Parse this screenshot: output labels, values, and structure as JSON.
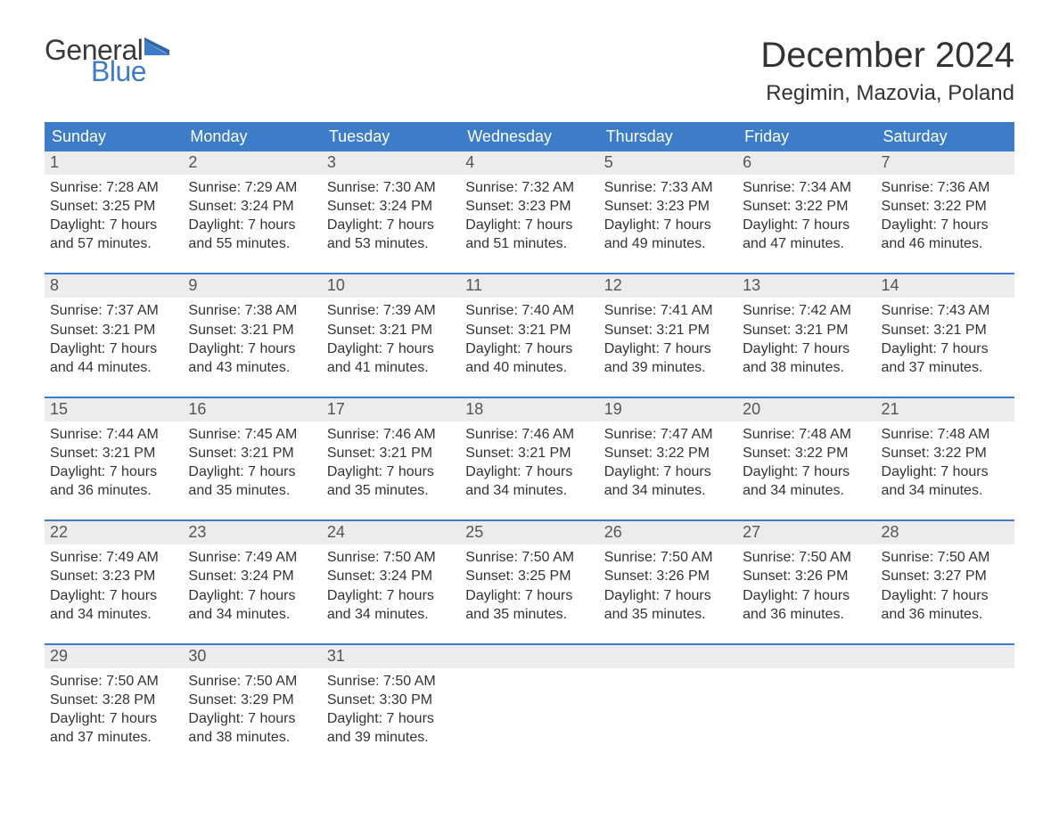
{
  "brand": {
    "word1": "General",
    "word2": "Blue"
  },
  "title": "December 2024",
  "subtitle": "Regimin, Mazovia, Poland",
  "colors": {
    "header_bg": "#3d7cc9",
    "header_text": "#ffffff",
    "daynum_bg": "#ececec",
    "text": "#333333",
    "rule": "#3d7cc9",
    "logo_blue": "#3d7cc9"
  },
  "dow": [
    "Sunday",
    "Monday",
    "Tuesday",
    "Wednesday",
    "Thursday",
    "Friday",
    "Saturday"
  ],
  "weeks": [
    [
      {
        "n": "1",
        "sunrise": "Sunrise: 7:28 AM",
        "sunset": "Sunset: 3:25 PM",
        "d1": "Daylight: 7 hours",
        "d2": "and 57 minutes."
      },
      {
        "n": "2",
        "sunrise": "Sunrise: 7:29 AM",
        "sunset": "Sunset: 3:24 PM",
        "d1": "Daylight: 7 hours",
        "d2": "and 55 minutes."
      },
      {
        "n": "3",
        "sunrise": "Sunrise: 7:30 AM",
        "sunset": "Sunset: 3:24 PM",
        "d1": "Daylight: 7 hours",
        "d2": "and 53 minutes."
      },
      {
        "n": "4",
        "sunrise": "Sunrise: 7:32 AM",
        "sunset": "Sunset: 3:23 PM",
        "d1": "Daylight: 7 hours",
        "d2": "and 51 minutes."
      },
      {
        "n": "5",
        "sunrise": "Sunrise: 7:33 AM",
        "sunset": "Sunset: 3:23 PM",
        "d1": "Daylight: 7 hours",
        "d2": "and 49 minutes."
      },
      {
        "n": "6",
        "sunrise": "Sunrise: 7:34 AM",
        "sunset": "Sunset: 3:22 PM",
        "d1": "Daylight: 7 hours",
        "d2": "and 47 minutes."
      },
      {
        "n": "7",
        "sunrise": "Sunrise: 7:36 AM",
        "sunset": "Sunset: 3:22 PM",
        "d1": "Daylight: 7 hours",
        "d2": "and 46 minutes."
      }
    ],
    [
      {
        "n": "8",
        "sunrise": "Sunrise: 7:37 AM",
        "sunset": "Sunset: 3:21 PM",
        "d1": "Daylight: 7 hours",
        "d2": "and 44 minutes."
      },
      {
        "n": "9",
        "sunrise": "Sunrise: 7:38 AM",
        "sunset": "Sunset: 3:21 PM",
        "d1": "Daylight: 7 hours",
        "d2": "and 43 minutes."
      },
      {
        "n": "10",
        "sunrise": "Sunrise: 7:39 AM",
        "sunset": "Sunset: 3:21 PM",
        "d1": "Daylight: 7 hours",
        "d2": "and 41 minutes."
      },
      {
        "n": "11",
        "sunrise": "Sunrise: 7:40 AM",
        "sunset": "Sunset: 3:21 PM",
        "d1": "Daylight: 7 hours",
        "d2": "and 40 minutes."
      },
      {
        "n": "12",
        "sunrise": "Sunrise: 7:41 AM",
        "sunset": "Sunset: 3:21 PM",
        "d1": "Daylight: 7 hours",
        "d2": "and 39 minutes."
      },
      {
        "n": "13",
        "sunrise": "Sunrise: 7:42 AM",
        "sunset": "Sunset: 3:21 PM",
        "d1": "Daylight: 7 hours",
        "d2": "and 38 minutes."
      },
      {
        "n": "14",
        "sunrise": "Sunrise: 7:43 AM",
        "sunset": "Sunset: 3:21 PM",
        "d1": "Daylight: 7 hours",
        "d2": "and 37 minutes."
      }
    ],
    [
      {
        "n": "15",
        "sunrise": "Sunrise: 7:44 AM",
        "sunset": "Sunset: 3:21 PM",
        "d1": "Daylight: 7 hours",
        "d2": "and 36 minutes."
      },
      {
        "n": "16",
        "sunrise": "Sunrise: 7:45 AM",
        "sunset": "Sunset: 3:21 PM",
        "d1": "Daylight: 7 hours",
        "d2": "and 35 minutes."
      },
      {
        "n": "17",
        "sunrise": "Sunrise: 7:46 AM",
        "sunset": "Sunset: 3:21 PM",
        "d1": "Daylight: 7 hours",
        "d2": "and 35 minutes."
      },
      {
        "n": "18",
        "sunrise": "Sunrise: 7:46 AM",
        "sunset": "Sunset: 3:21 PM",
        "d1": "Daylight: 7 hours",
        "d2": "and 34 minutes."
      },
      {
        "n": "19",
        "sunrise": "Sunrise: 7:47 AM",
        "sunset": "Sunset: 3:22 PM",
        "d1": "Daylight: 7 hours",
        "d2": "and 34 minutes."
      },
      {
        "n": "20",
        "sunrise": "Sunrise: 7:48 AM",
        "sunset": "Sunset: 3:22 PM",
        "d1": "Daylight: 7 hours",
        "d2": "and 34 minutes."
      },
      {
        "n": "21",
        "sunrise": "Sunrise: 7:48 AM",
        "sunset": "Sunset: 3:22 PM",
        "d1": "Daylight: 7 hours",
        "d2": "and 34 minutes."
      }
    ],
    [
      {
        "n": "22",
        "sunrise": "Sunrise: 7:49 AM",
        "sunset": "Sunset: 3:23 PM",
        "d1": "Daylight: 7 hours",
        "d2": "and 34 minutes."
      },
      {
        "n": "23",
        "sunrise": "Sunrise: 7:49 AM",
        "sunset": "Sunset: 3:24 PM",
        "d1": "Daylight: 7 hours",
        "d2": "and 34 minutes."
      },
      {
        "n": "24",
        "sunrise": "Sunrise: 7:50 AM",
        "sunset": "Sunset: 3:24 PM",
        "d1": "Daylight: 7 hours",
        "d2": "and 34 minutes."
      },
      {
        "n": "25",
        "sunrise": "Sunrise: 7:50 AM",
        "sunset": "Sunset: 3:25 PM",
        "d1": "Daylight: 7 hours",
        "d2": "and 35 minutes."
      },
      {
        "n": "26",
        "sunrise": "Sunrise: 7:50 AM",
        "sunset": "Sunset: 3:26 PM",
        "d1": "Daylight: 7 hours",
        "d2": "and 35 minutes."
      },
      {
        "n": "27",
        "sunrise": "Sunrise: 7:50 AM",
        "sunset": "Sunset: 3:26 PM",
        "d1": "Daylight: 7 hours",
        "d2": "and 36 minutes."
      },
      {
        "n": "28",
        "sunrise": "Sunrise: 7:50 AM",
        "sunset": "Sunset: 3:27 PM",
        "d1": "Daylight: 7 hours",
        "d2": "and 36 minutes."
      }
    ],
    [
      {
        "n": "29",
        "sunrise": "Sunrise: 7:50 AM",
        "sunset": "Sunset: 3:28 PM",
        "d1": "Daylight: 7 hours",
        "d2": "and 37 minutes."
      },
      {
        "n": "30",
        "sunrise": "Sunrise: 7:50 AM",
        "sunset": "Sunset: 3:29 PM",
        "d1": "Daylight: 7 hours",
        "d2": "and 38 minutes."
      },
      {
        "n": "31",
        "sunrise": "Sunrise: 7:50 AM",
        "sunset": "Sunset: 3:30 PM",
        "d1": "Daylight: 7 hours",
        "d2": "and 39 minutes."
      },
      {
        "n": "",
        "sunrise": "",
        "sunset": "",
        "d1": "",
        "d2": ""
      },
      {
        "n": "",
        "sunrise": "",
        "sunset": "",
        "d1": "",
        "d2": ""
      },
      {
        "n": "",
        "sunrise": "",
        "sunset": "",
        "d1": "",
        "d2": ""
      },
      {
        "n": "",
        "sunrise": "",
        "sunset": "",
        "d1": "",
        "d2": ""
      }
    ]
  ]
}
